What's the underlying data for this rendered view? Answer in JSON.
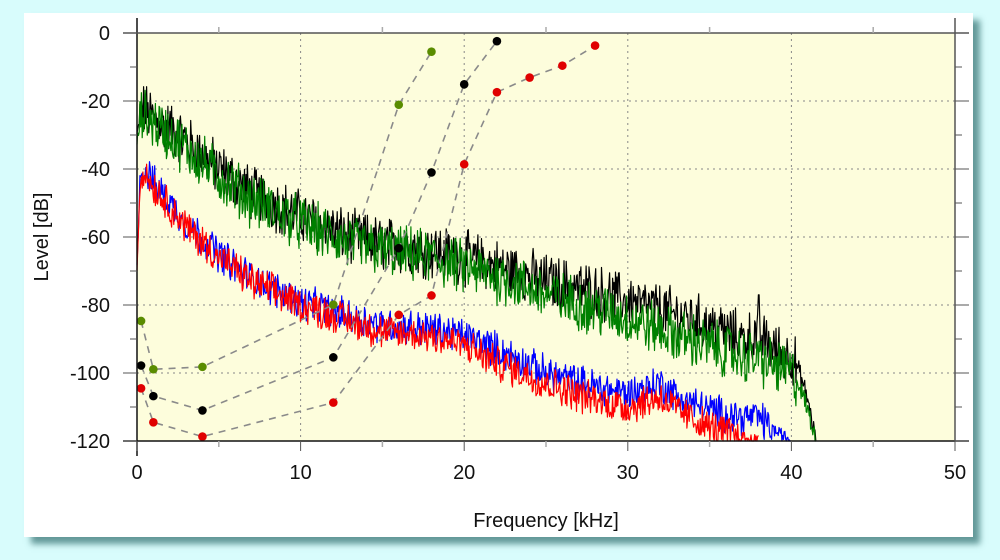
{
  "colors": {
    "page_background": "#d8fcfc",
    "plot_background": "#fdfddc",
    "grid": "#888888",
    "dashed_line": "#8a8a8a",
    "black": "#000000",
    "green": "#008000",
    "blue": "#0000ff",
    "red": "#ff0000",
    "dot_green": "#5a8c00",
    "dot_black": "#000000",
    "dot_red": "#e00000"
  },
  "chart_data": {
    "type": "line",
    "title": "",
    "xlabel": "Frequency [kHz]",
    "ylabel": "Level [dB]",
    "xlim": [
      0,
      50
    ],
    "ylim": [
      -120,
      0
    ],
    "xticks": [
      0,
      10,
      20,
      30,
      40,
      50
    ],
    "xtick_labels": [
      "0",
      "10",
      "20",
      "30",
      "40",
      "50"
    ],
    "yticks": [
      0,
      -20,
      -40,
      -60,
      -80,
      -100,
      -120
    ],
    "ytick_labels": [
      "0",
      "-20",
      "-40",
      "-60",
      "-80",
      "-100",
      "-120"
    ],
    "grid": true,
    "legend": "none",
    "spectra": [
      {
        "name": "black",
        "color_key": "black",
        "noise_db": 7,
        "freq": [
          0,
          0.3,
          1,
          2,
          3,
          5,
          7,
          10,
          13,
          15,
          18,
          20,
          23,
          25,
          28,
          30,
          33,
          35,
          37,
          38,
          39,
          40,
          40.5,
          41,
          41.5
        ],
        "level": [
          -30,
          -22,
          -25,
          -28,
          -32,
          -40,
          -47,
          -54,
          -60,
          -62,
          -64,
          -66,
          -70,
          -73,
          -76,
          -79,
          -83,
          -86,
          -90,
          -89,
          -93,
          -95,
          -100,
          -108,
          -120
        ]
      },
      {
        "name": "green",
        "color_key": "green",
        "noise_db": 7,
        "freq": [
          0,
          0.3,
          1,
          2,
          3,
          5,
          7,
          10,
          13,
          15,
          18,
          20,
          23,
          25,
          28,
          30,
          33,
          35,
          37,
          38,
          39,
          40,
          40.5,
          41,
          41.5
        ],
        "level": [
          -32,
          -24,
          -26,
          -30,
          -34,
          -42,
          -49,
          -56,
          -62,
          -64,
          -66,
          -69,
          -73,
          -77,
          -81,
          -84,
          -89,
          -92,
          -95,
          -96,
          -98,
          -100,
          -104,
          -111,
          -120
        ]
      },
      {
        "name": "blue",
        "color_key": "blue",
        "noise_db": 4.5,
        "freq": [
          0,
          0.2,
          0.5,
          1,
          2,
          3,
          5,
          7,
          10,
          12,
          15,
          18,
          20,
          22,
          25,
          28,
          30,
          32,
          33,
          35,
          37,
          38,
          39,
          40
        ],
        "level": [
          -68,
          -42,
          -40,
          -44,
          -50,
          -56,
          -65,
          -72,
          -79,
          -82,
          -86,
          -87,
          -89,
          -93,
          -100,
          -104,
          -106,
          -103,
          -107,
          -111,
          -113,
          -113,
          -117,
          -120
        ]
      },
      {
        "name": "red",
        "color_key": "red",
        "noise_db": 4.5,
        "freq": [
          0,
          0.2,
          0.5,
          1,
          2,
          3,
          5,
          7,
          10,
          12,
          15,
          18,
          20,
          22,
          25,
          28,
          30,
          32,
          33,
          35,
          37,
          38
        ],
        "level": [
          -70,
          -42,
          -41,
          -45,
          -51,
          -57,
          -66,
          -73,
          -80,
          -83,
          -88,
          -89,
          -92,
          -97,
          -103,
          -108,
          -110,
          -107,
          -111,
          -116,
          -119,
          -120
        ]
      }
    ],
    "threshold_series": [
      {
        "name": "green-dots",
        "color_key": "dot_green",
        "freq": [
          0.25,
          1,
          4,
          12,
          16,
          18
        ],
        "level": [
          -84.7,
          -98.9,
          -98.2,
          -79.9,
          -21.1,
          -5.5
        ]
      },
      {
        "name": "black-dots",
        "color_key": "dot_black",
        "freq": [
          0.25,
          1,
          4,
          12,
          16,
          18,
          20,
          22
        ],
        "level": [
          -97.8,
          -106.8,
          -111.0,
          -95.4,
          -63.3,
          -41.0,
          -15.1,
          -2.4
        ]
      },
      {
        "name": "red-dots",
        "color_key": "dot_red",
        "freq": [
          0.25,
          1,
          4,
          12,
          16,
          18,
          20,
          22,
          24,
          26,
          28
        ],
        "level": [
          -104.5,
          -114.5,
          -118.7,
          -108.7,
          -82.9,
          -77.2,
          -38.6,
          -17.4,
          -13.1,
          -9.6,
          -3.7
        ]
      }
    ]
  }
}
